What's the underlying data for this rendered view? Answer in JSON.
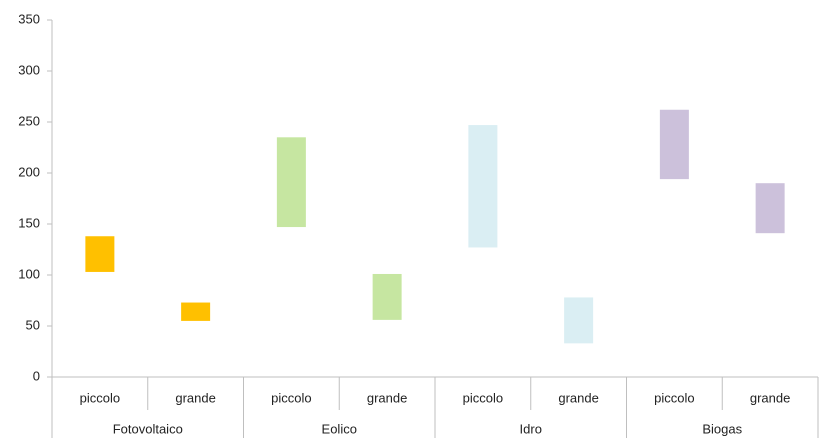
{
  "chart_data": {
    "type": "floating-bar",
    "groups": [
      "Fotovoltaico",
      "Eolico",
      "Idro",
      "Biogas"
    ],
    "categories": [
      "piccolo",
      "grande",
      "piccolo",
      "grande",
      "piccolo",
      "grande",
      "piccolo",
      "grande"
    ],
    "low": [
      103,
      55,
      147,
      56,
      127,
      33,
      194,
      141
    ],
    "high": [
      138,
      73,
      235,
      101,
      247,
      78,
      262,
      190
    ],
    "colors": [
      "#ffc000",
      "#ffc000",
      "#c6e6a1",
      "#c6e6a1",
      "#daeef3",
      "#daeef3",
      "#ccc1db",
      "#ccc1db"
    ],
    "ylim": [
      0,
      350
    ],
    "yticks": [
      0,
      50,
      100,
      150,
      200,
      250,
      300,
      350
    ],
    "grid": false
  }
}
